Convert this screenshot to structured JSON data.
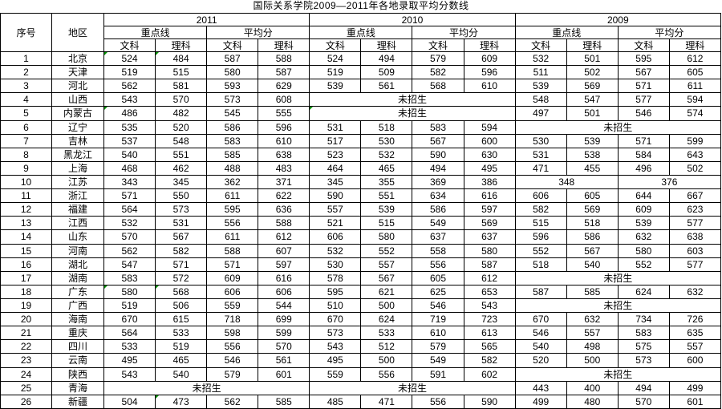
{
  "title": "国际关系学院2009—2011年各地录取平均分数线",
  "colors": {
    "background": "#ffffff",
    "grid_line": "#000000",
    "text": "#000000",
    "flag_green": "#009000"
  },
  "table": {
    "corner_headers": {
      "serial": "序号",
      "region": "地区"
    },
    "years": [
      "2011",
      "2010",
      "2009"
    ],
    "group_headers": {
      "key_line": "重点线",
      "average": "平均分"
    },
    "subject_headers": {
      "arts": "文科",
      "science": "理科"
    },
    "no_enrollment_label": "未招生",
    "rows": [
      {
        "no": "1",
        "region": "北京",
        "cells": [
          {
            "v": "524",
            "flag": true
          },
          {
            "v": "484",
            "flag": true
          },
          "587",
          "588",
          "524",
          "494",
          "579",
          "609",
          "532",
          "501",
          "595",
          "612"
        ]
      },
      {
        "no": "2",
        "region": "天津",
        "cells": [
          "519",
          "515",
          "580",
          "587",
          "519",
          "509",
          "582",
          "596",
          "511",
          "502",
          "567",
          "605"
        ]
      },
      {
        "no": "3",
        "region": "河北",
        "cells": [
          "562",
          "581",
          "593",
          "629",
          "539",
          "561",
          "568",
          "610",
          "539",
          "569",
          "571",
          "611"
        ]
      },
      {
        "no": "4",
        "region": "山西",
        "cells": [
          "543",
          "570",
          "573",
          "608",
          {
            "v": "未招生",
            "span": 4
          },
          "548",
          "547",
          "577",
          "594"
        ]
      },
      {
        "no": "5",
        "region": "内蒙古",
        "cells": [
          {
            "v": "486",
            "flag": true
          },
          "482",
          "545",
          "555",
          {
            "v": "未招生",
            "span": 4,
            "flag": true
          },
          "497",
          "501",
          "546",
          "574"
        ]
      },
      {
        "no": "6",
        "region": "辽宁",
        "cells": [
          "535",
          "520",
          "586",
          "596",
          "531",
          "518",
          "583",
          "594",
          {
            "v": "未招生",
            "span": 4
          }
        ]
      },
      {
        "no": "7",
        "region": "吉林",
        "cells": [
          "537",
          "548",
          "583",
          "610",
          "517",
          "530",
          "567",
          "600",
          "530",
          "539",
          "571",
          "599"
        ]
      },
      {
        "no": "8",
        "region": "黑龙江",
        "cells": [
          "540",
          "551",
          "585",
          "638",
          "523",
          "532",
          "590",
          "630",
          "531",
          "538",
          "584",
          "643"
        ]
      },
      {
        "no": "9",
        "region": "上海",
        "cells": [
          "468",
          "462",
          "488",
          "483",
          "464",
          "465",
          "494",
          "495",
          "471",
          "455",
          "496",
          "502"
        ]
      },
      {
        "no": "10",
        "region": "江苏",
        "cells": [
          "343",
          "345",
          "362",
          "371",
          "345",
          "355",
          "369",
          "386",
          {
            "v": "348",
            "span": 2
          },
          {
            "v": "376",
            "span": 2
          }
        ]
      },
      {
        "no": "11",
        "region": "浙江",
        "cells": [
          "571",
          "550",
          "611",
          "622",
          "590",
          "551",
          "634",
          "616",
          "606",
          "605",
          "644",
          "667"
        ]
      },
      {
        "no": "12",
        "region": "福建",
        "cells": [
          "564",
          "573",
          "595",
          "636",
          "557",
          "539",
          "586",
          "597",
          "582",
          "569",
          "609",
          "623"
        ]
      },
      {
        "no": "13",
        "region": "江西",
        "cells": [
          "532",
          "531",
          "556",
          "588",
          "521",
          "515",
          "549",
          "569",
          "515",
          "518",
          "539",
          "577"
        ]
      },
      {
        "no": "14",
        "region": "山东",
        "cells": [
          "570",
          "567",
          "611",
          "612",
          "606",
          "580",
          "637",
          "637",
          "596",
          "586",
          "632",
          "638"
        ]
      },
      {
        "no": "15",
        "region": "河南",
        "cells": [
          "562",
          "582",
          "588",
          "607",
          "532",
          "552",
          "558",
          "580",
          "552",
          "567",
          "580",
          "603"
        ]
      },
      {
        "no": "16",
        "region": "湖北",
        "cells": [
          "547",
          "571",
          "571",
          "597",
          "530",
          "557",
          "556",
          "587",
          "518",
          "540",
          "552",
          "577"
        ]
      },
      {
        "no": "17",
        "region": "湖南",
        "cells": [
          "583",
          "572",
          "609",
          "616",
          "578",
          "567",
          "605",
          "612",
          {
            "v": "未招生",
            "span": 4
          }
        ]
      },
      {
        "no": "18",
        "region": "广东",
        "cells": [
          {
            "v": "580",
            "flag": true
          },
          {
            "v": "568",
            "flag": true
          },
          "606",
          "606",
          "595",
          "621",
          "625",
          "653",
          "587",
          "585",
          "624",
          "632"
        ]
      },
      {
        "no": "19",
        "region": "广西",
        "cells": [
          "519",
          "506",
          "559",
          "544",
          "510",
          "500",
          "546",
          "543",
          {
            "v": "未招生",
            "span": 4
          }
        ]
      },
      {
        "no": "20",
        "region": "海南",
        "cells": [
          "670",
          "615",
          "718",
          "699",
          "670",
          "624",
          "719",
          "723",
          "670",
          "632",
          "734",
          "726"
        ]
      },
      {
        "no": "21",
        "region": "重庆",
        "cells": [
          "564",
          "533",
          "598",
          "599",
          "573",
          "533",
          "610",
          "613",
          "546",
          "557",
          "583",
          "635"
        ]
      },
      {
        "no": "22",
        "region": "四川",
        "cells": [
          "533",
          "519",
          "556",
          "570",
          "543",
          "512",
          "579",
          "565",
          "540",
          "498",
          "575",
          "557"
        ]
      },
      {
        "no": "23",
        "region": "云南",
        "cells": [
          "495",
          "465",
          "546",
          "561",
          "495",
          "500",
          "549",
          "582",
          "520",
          "500",
          "573",
          "600"
        ]
      },
      {
        "no": "24",
        "region": "陕西",
        "cells": [
          "543",
          "540",
          "579",
          "601",
          "559",
          "556",
          "591",
          "602",
          {
            "v": "未招生",
            "span": 4
          }
        ]
      },
      {
        "no": "25",
        "region": "青海",
        "cells": [
          {
            "v": "未招生",
            "span": 4
          },
          {
            "v": "未招生",
            "span": 4
          },
          "443",
          "400",
          "494",
          "499"
        ]
      },
      {
        "no": "26",
        "region": "新疆",
        "cells": [
          "504",
          {
            "v": "473",
            "flag": true
          },
          "562",
          "585",
          "485",
          "471",
          "556",
          "590",
          "499",
          "480",
          "570",
          "601"
        ]
      }
    ]
  }
}
